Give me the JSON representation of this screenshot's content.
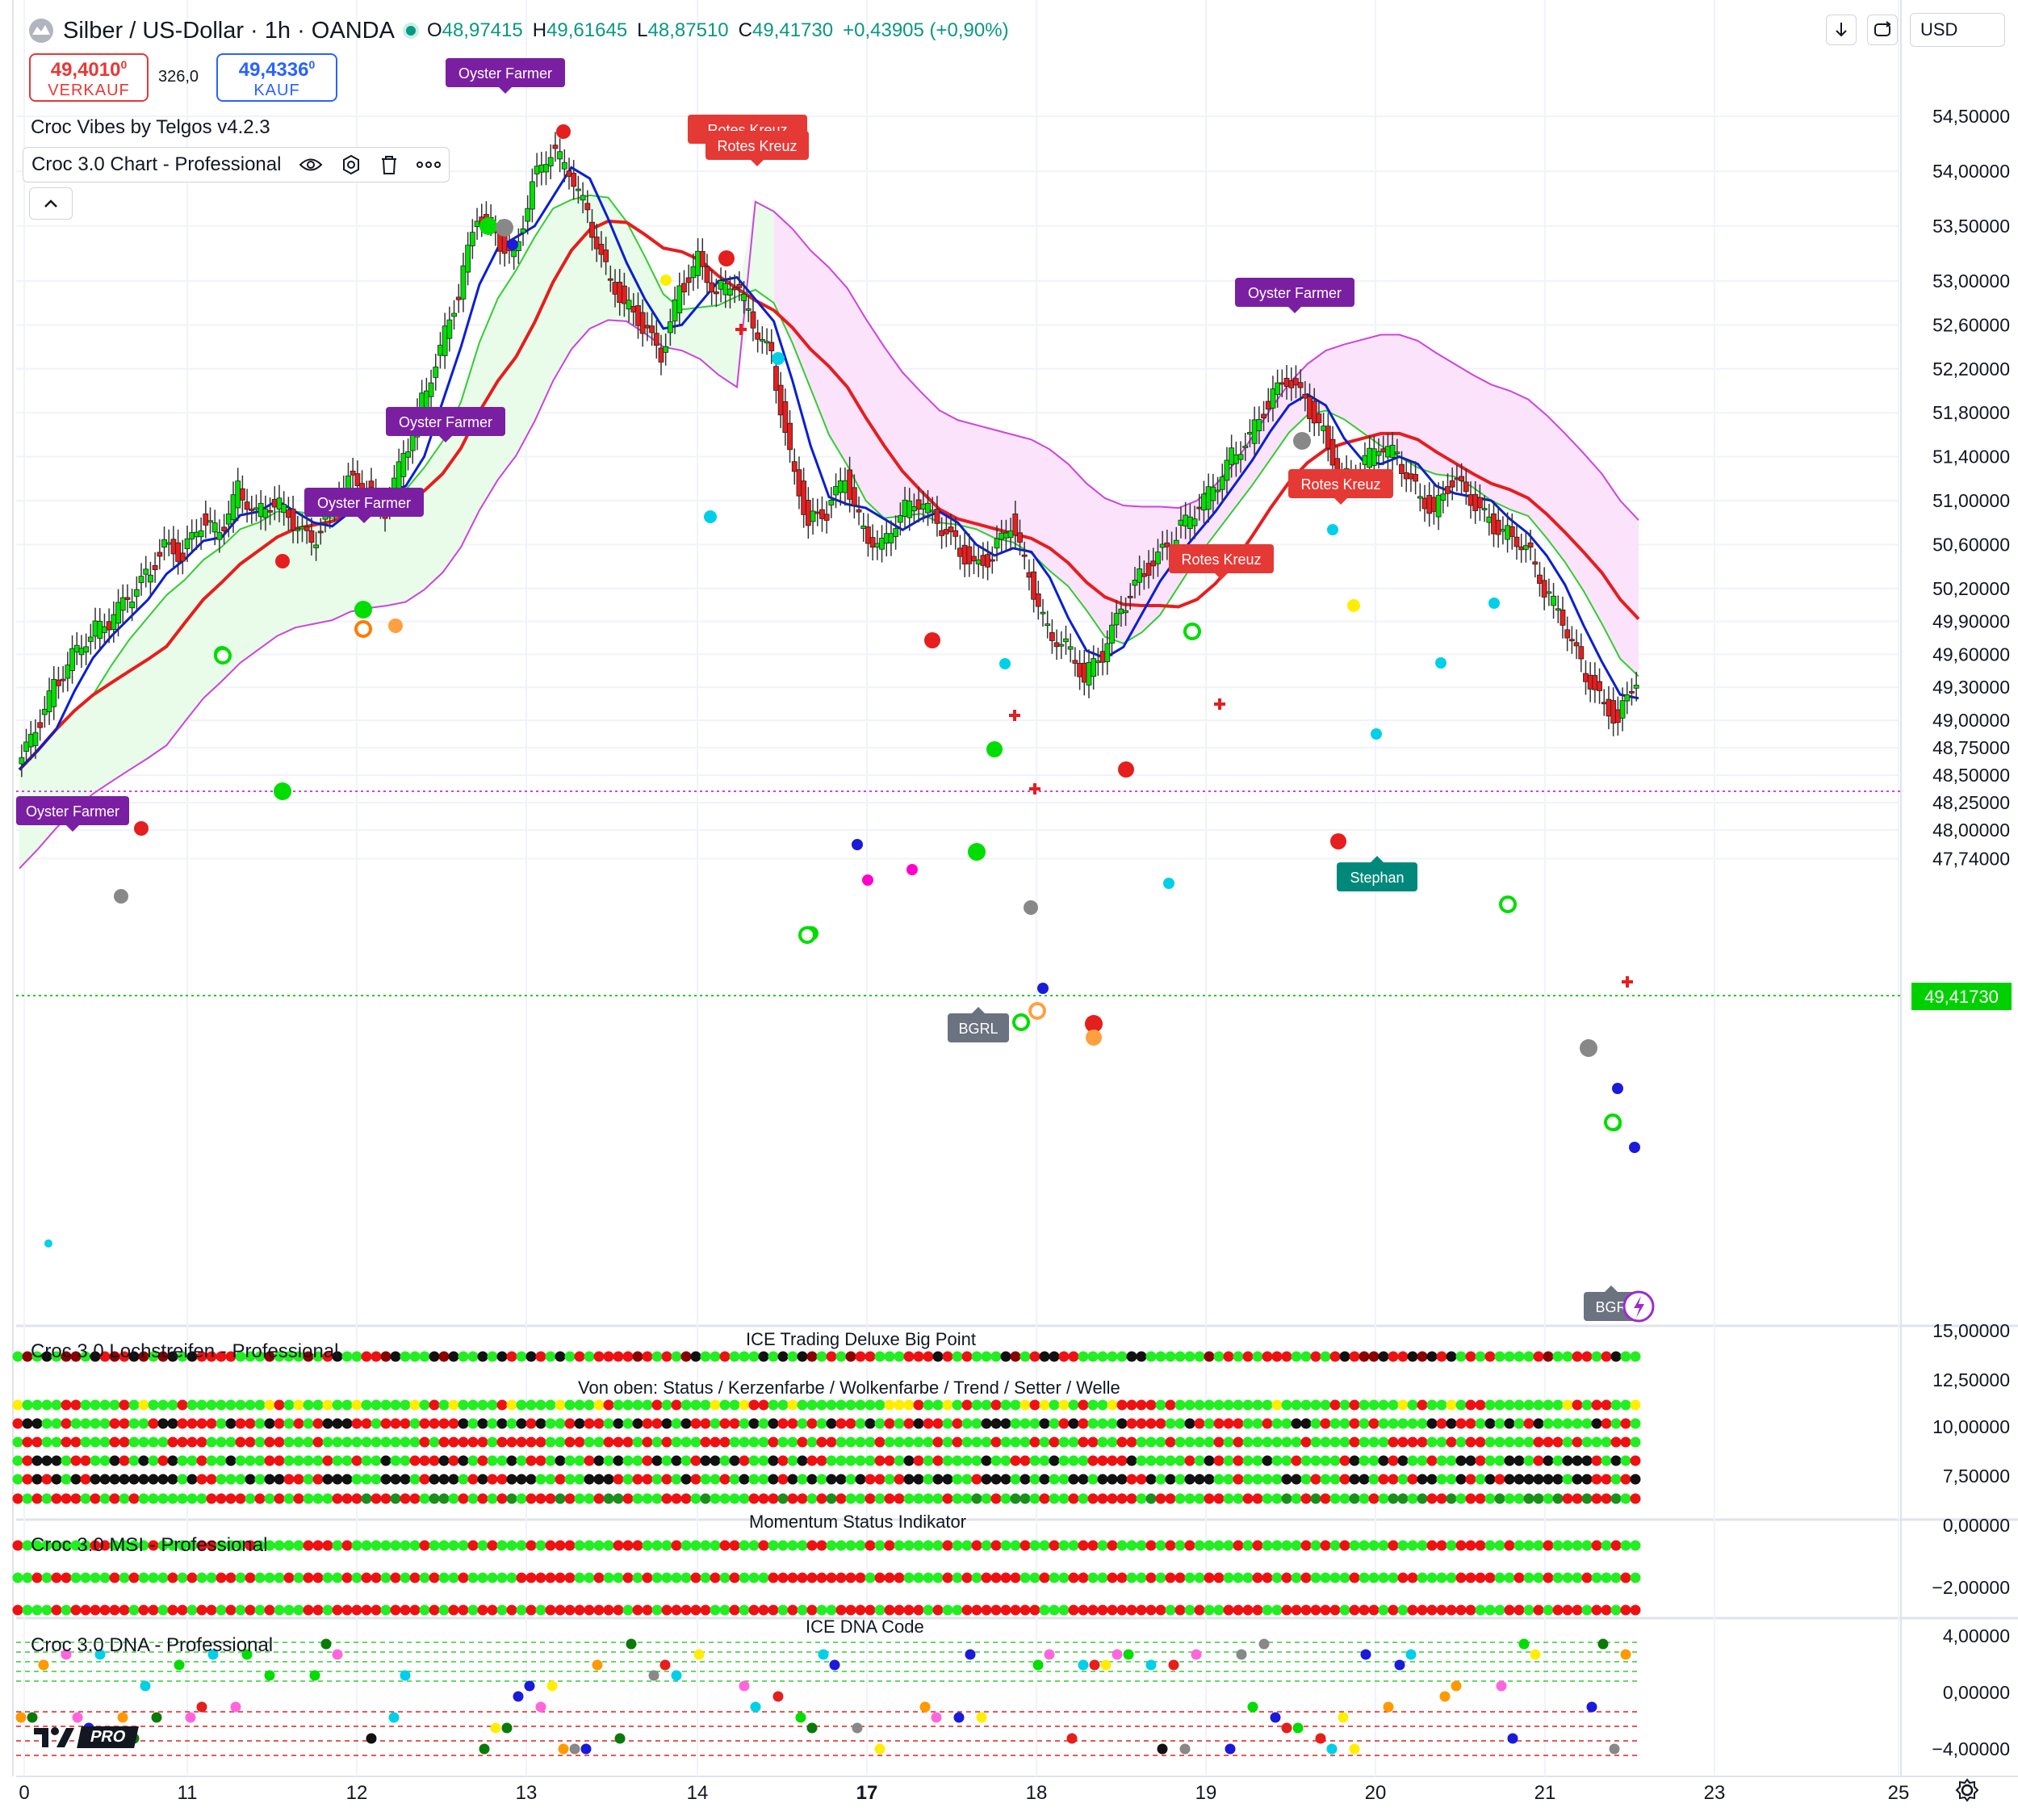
{
  "header": {
    "symbol": "Silber / US-Dollar · 1h · OANDA",
    "ohlc": [
      {
        "k": "O",
        "v": "48,97415"
      },
      {
        "k": "H",
        "v": "49,61645"
      },
      {
        "k": "L",
        "v": "48,87510"
      },
      {
        "k": "C",
        "v": "49,41730"
      },
      {
        "k": "",
        "v": "+0,43905 (+0,90%)"
      }
    ],
    "currency": "USD",
    "sell": {
      "price": "49,4010",
      "sup": "0",
      "label": "VERKAUF"
    },
    "spread": "326,0",
    "buy": {
      "price": "49,4336",
      "sup": "0",
      "label": "KAUF"
    }
  },
  "legend": {
    "indicator1": "Croc Vibes by Telgos v4.2.3",
    "indicator2": "Croc 3.0 Chart - Professional"
  },
  "panes": {
    "p1_label": "Croc 3.0 Lochstreifen - Professional",
    "p1_title": "ICE Trading Deluxe Big Point",
    "p1_subtitle": "Von oben: Status / Kerzenfarbe / Wolkenfarbe / Trend / Setter / Welle",
    "p2_label": "Croc 3.0 MSI - Professional",
    "p2_title": "Momentum Status Indikator",
    "p3_label": "Croc 3.0 DNA - Professional",
    "p3_title": "ICE DNA Code",
    "watermark": "PRO"
  },
  "colors": {
    "up": "#00e000",
    "down": "#e51e1e",
    "blue": "#0a1fd1",
    "red_line": "#e51e1e",
    "green_line": "#33cc33",
    "magenta": "#cc44dd",
    "cloud_green": "#e9fbe9",
    "cloud_pink": "#fbe3fb",
    "purple_label": "#7a1fa2",
    "red_label": "#e53935",
    "teal_label": "#00897b",
    "gray_label": "#6b7280",
    "price_tag": "#00d000"
  },
  "chart_data": {
    "type": "candlestick",
    "y_axis_labels": [
      "54,50000",
      "54,00000",
      "53,50000",
      "53,00000",
      "52,60000",
      "52,20000",
      "51,80000",
      "51,40000",
      "51,00000",
      "50,60000",
      "50,20000",
      "49,90000",
      "49,60000",
      "49,30000",
      "49,00000",
      "48,75000",
      "48,50000",
      "48,25000",
      "48,00000",
      "47,74000"
    ],
    "current_price": "49,41730",
    "x_axis_labels": [
      "0",
      "11",
      "12",
      "13",
      "14",
      "17",
      "18",
      "19",
      "20",
      "21",
      "23",
      "25"
    ],
    "pane1_y_labels": [
      "15,00000",
      "12,50000",
      "10,00000",
      "7,50000"
    ],
    "pane2_y_labels": [
      "0,00000",
      "−2,00000"
    ],
    "pane3_y_labels": [
      "4,00000",
      "0,00000",
      "−4,00000"
    ],
    "annotations": [
      {
        "text": "Oyster Farmer",
        "kind": "purple"
      },
      {
        "text": "Oyster Farmer",
        "kind": "purple"
      },
      {
        "text": "Oyster Farmer",
        "kind": "purple"
      },
      {
        "text": "Oyster Farmer",
        "kind": "purple"
      },
      {
        "text": "Oyster Farmer",
        "kind": "purple"
      },
      {
        "text": "Rotes Kreuz",
        "kind": "red"
      },
      {
        "text": "Rotes Kreuz",
        "kind": "red"
      },
      {
        "text": "Rotes Kreuz",
        "kind": "red"
      },
      {
        "text": "Rotes Kreuz",
        "kind": "red"
      },
      {
        "text": "Stephan",
        "kind": "teal"
      },
      {
        "text": "BGRL",
        "kind": "gray"
      },
      {
        "text": "BGR",
        "kind": "gray"
      }
    ],
    "close_path": [
      48.55,
      48.9,
      49.3,
      49.6,
      49.8,
      49.9,
      50.1,
      50.3,
      50.6,
      50.5,
      50.8,
      50.7,
      51.1,
      50.9,
      51.0,
      50.8,
      50.6,
      50.9,
      51.2,
      51.1,
      50.9,
      51.4,
      51.9,
      52.4,
      52.9,
      53.6,
      53.4,
      53.2,
      53.9,
      54.2,
      54.0,
      53.6,
      53.1,
      52.8,
      52.6,
      52.3,
      52.9,
      53.2,
      52.9,
      53.0,
      52.6,
      52.3,
      51.4,
      50.8,
      50.9,
      51.2,
      50.7,
      50.6,
      50.9,
      51.0,
      50.8,
      50.6,
      50.4,
      50.5,
      50.8,
      50.3,
      49.8,
      49.7,
      49.4,
      49.6,
      50.0,
      50.3,
      50.5,
      50.7,
      50.9,
      51.1,
      51.4,
      51.6,
      51.9,
      52.1,
      51.9,
      51.6,
      51.2,
      51.3,
      51.5,
      51.4,
      51.1,
      50.9,
      51.2,
      51.0,
      50.8,
      50.7,
      50.6,
      50.2,
      49.9,
      49.5,
      49.2,
      49.0,
      49.4
    ],
    "series": [
      {
        "name": "",
        "color": "#0a1fd1"
      },
      {
        "name": "",
        "color": "#e51e1e"
      },
      {
        "name": "",
        "color": "#33cc33"
      },
      {
        "name": "",
        "color": "#cc44dd"
      }
    ]
  }
}
